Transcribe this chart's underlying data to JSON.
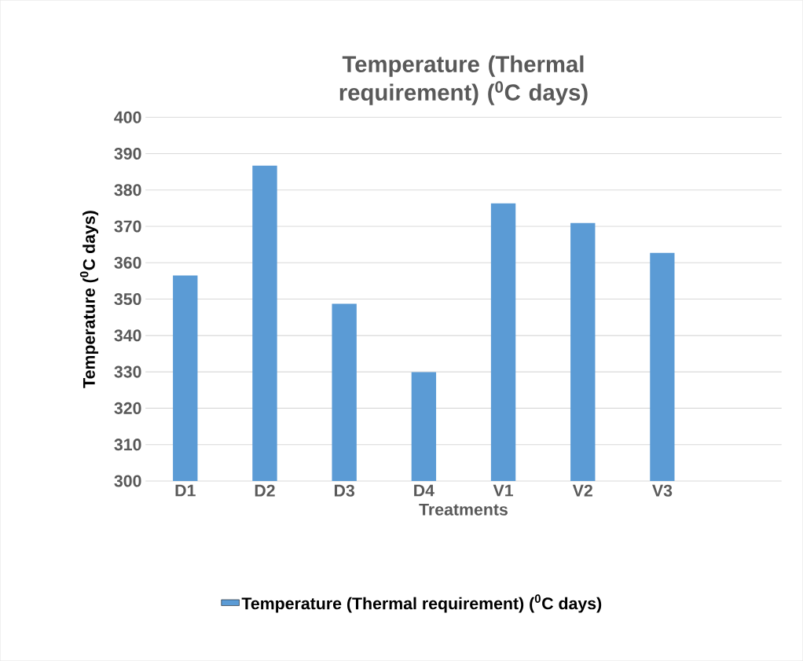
{
  "chart_data": {
    "type": "bar",
    "title": "Temperature (Thermal requirement) ($^{0}$C days)",
    "xlabel": "Treatments",
    "ylabel": "Temperature ($^{0}$C days)",
    "categories": [
      "D1",
      "D2",
      "D3",
      "D4",
      "V1",
      "V2",
      "V3",
      null
    ],
    "series": [
      {
        "name": "Temperature (Thermal requirement) ($^{0}$C days)",
        "color": "#5b9bd5",
        "values": [
          356.5,
          386.7,
          348.7,
          329.9,
          376.3,
          370.9,
          362.7,
          null
        ]
      }
    ],
    "ylim": [
      300,
      400
    ],
    "yticks": [
      300,
      310,
      320,
      330,
      340,
      350,
      360,
      370,
      380,
      390,
      400
    ],
    "grid": "y",
    "legend": "bottom"
  }
}
